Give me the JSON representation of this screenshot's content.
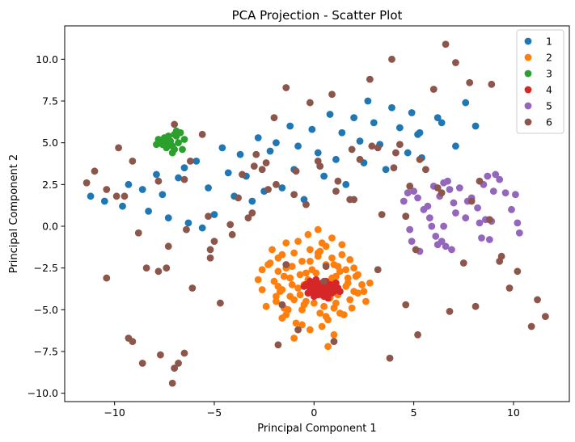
{
  "chart_data": {
    "type": "scatter",
    "title": "PCA Projection - Scatter Plot",
    "xlabel": "Principal Component 1",
    "ylabel": "Principal Component 2",
    "xlim": [
      -12.5,
      12.8
    ],
    "ylim": [
      -10.5,
      12.0
    ],
    "xticks": [
      -10,
      -5,
      0,
      5,
      10
    ],
    "yticks": [
      -10.0,
      -7.5,
      -5.0,
      -2.5,
      0.0,
      2.5,
      5.0,
      7.5,
      10.0
    ],
    "xtick_labels": [
      "−10",
      "−5",
      "0",
      "5",
      "10"
    ],
    "ytick_labels": [
      "−10.0",
      "−7.5",
      "−5.0",
      "−2.5",
      "0.0",
      "2.5",
      "5.0",
      "7.5",
      "10.0"
    ],
    "grid": false,
    "legend_position": "top-right",
    "series": [
      {
        "name": "1",
        "color": "#1f77b4",
        "x": [
          -11.2,
          -10.5,
          -9.6,
          -9.3,
          -8.6,
          -8.3,
          -7.9,
          -7.6,
          -7.3,
          -6.8,
          -6.5,
          -6.3,
          -5.9,
          -5.6,
          -5.3,
          -5.0,
          -4.6,
          -4.3,
          -4.0,
          -3.7,
          -3.4,
          -3.1,
          -2.8,
          -2.5,
          -2.2,
          -1.9,
          -1.6,
          -1.2,
          -1.0,
          -0.8,
          -0.5,
          -0.1,
          0.2,
          0.5,
          0.8,
          1.1,
          1.4,
          1.6,
          2.0,
          2.3,
          2.5,
          2.7,
          3.0,
          3.3,
          3.6,
          3.9,
          4.3,
          4.7,
          4.9,
          5.2,
          5.4,
          6.2,
          6.4,
          7.1,
          7.6,
          8.1,
          5.3
        ],
        "y": [
          1.8,
          1.5,
          1.2,
          2.5,
          2.2,
          0.9,
          3.1,
          1.9,
          0.5,
          2.9,
          3.5,
          0.2,
          3.9,
          -0.1,
          2.3,
          0.7,
          4.7,
          3.2,
          1.8,
          4.3,
          3.0,
          1.5,
          5.3,
          2.1,
          4.5,
          5.0,
          2.3,
          6.0,
          3.4,
          4.8,
          1.6,
          5.8,
          4.4,
          3.0,
          6.7,
          4.0,
          5.6,
          2.5,
          6.5,
          5.1,
          3.8,
          7.5,
          6.2,
          4.9,
          3.4,
          7.1,
          5.9,
          4.4,
          6.8,
          5.5,
          4.1,
          6.5,
          6.2,
          4.8,
          7.4,
          6.0,
          5.6
        ]
      },
      {
        "name": "2",
        "color": "#ff7f0e",
        "x": [
          -2.6,
          -2.2,
          -1.8,
          -1.4,
          -1.0,
          -0.6,
          -0.2,
          0.2,
          0.6,
          1.0,
          1.4,
          1.8,
          2.2,
          -2.0,
          -1.5,
          -1.1,
          -0.7,
          -0.3,
          0.1,
          0.5,
          0.9,
          1.3,
          1.7,
          2.1,
          -1.7,
          -1.2,
          -0.8,
          -0.4,
          0.0,
          0.4,
          0.8,
          1.2,
          1.6,
          2.0,
          -2.4,
          -1.9,
          -1.3,
          -0.5,
          0.3,
          1.1,
          1.9,
          -1.6,
          -0.9,
          0.7,
          1.5,
          -0.2,
          0.4,
          -1.0,
          1.0,
          -0.6,
          0.6,
          -1.4,
          1.4,
          -0.3,
          0.2,
          -0.8,
          0.9,
          -1.8,
          2.4,
          -2.8,
          -1.1,
          1.2,
          -0.1,
          0.0,
          0.5,
          -0.4,
          1.8,
          -2.1,
          2.6,
          -1.6,
          -1.8,
          -0.2,
          0.8,
          1.1,
          2.8,
          -1.9,
          -0.7,
          0.3,
          1.6,
          -1.2,
          0.4,
          -0.5,
          0.9,
          1.3,
          -2.3,
          -1.6,
          -1.0,
          0.1,
          0.6,
          2.2,
          -1.4,
          -0.6,
          0.2,
          1.0,
          1.7,
          2.0,
          2.5,
          -2.6,
          -1.5,
          0.7
        ],
        "y": [
          -2.6,
          -2.2,
          -1.9,
          -2.5,
          -1.6,
          -2.1,
          -1.4,
          -1.8,
          -1.2,
          -2.3,
          -1.7,
          -2.0,
          -2.9,
          -3.3,
          -3.0,
          -3.5,
          -2.9,
          -3.2,
          -2.8,
          -3.6,
          -3.1,
          -2.7,
          -3.4,
          -3.0,
          -3.9,
          -4.2,
          -3.7,
          -4.5,
          -4.0,
          -3.8,
          -4.3,
          -4.1,
          -3.6,
          -3.9,
          -4.8,
          -4.5,
          -5.0,
          -4.7,
          -5.2,
          -4.6,
          -4.9,
          -5.5,
          -5.8,
          -5.6,
          -5.3,
          -6.2,
          -6.0,
          -6.7,
          -6.5,
          -5.9,
          -5.4,
          -1.0,
          -1.1,
          -0.5,
          -0.2,
          -0.9,
          -0.7,
          -3.6,
          -3.5,
          -3.2,
          -2.4,
          -2.4,
          -2.6,
          -4.6,
          -4.8,
          -2.8,
          -4.4,
          -1.4,
          -4.5,
          -3.8,
          -2.7,
          -2.1,
          -3.3,
          -3.0,
          -3.4,
          -4.2,
          -4.1,
          -1.5,
          -2.6,
          -3.1,
          -1.0,
          -3.5,
          -1.9,
          -5.2,
          -2.3,
          -1.7,
          -4.4,
          -3.4,
          -2.3,
          -4.0,
          -5.3,
          -5.0,
          -1.6,
          -4.9,
          -3.1,
          -2.5,
          -3.9,
          -3.8,
          -4.9,
          -7.2
        ]
      },
      {
        "name": "3",
        "color": "#2ca02c",
        "x": [
          -7.9,
          -7.7,
          -7.5,
          -7.3,
          -7.1,
          -6.9,
          -6.7,
          -6.5,
          -7.6,
          -7.4,
          -7.2,
          -7.0,
          -6.8,
          -6.6,
          -7.8,
          -7.3,
          -7.1,
          -6.9,
          -7.5,
          -7.0
        ],
        "y": [
          4.9,
          5.1,
          5.3,
          5.0,
          4.8,
          5.4,
          5.6,
          5.2,
          4.9,
          4.7,
          5.1,
          5.5,
          5.0,
          4.6,
          5.2,
          5.4,
          4.4,
          5.7,
          5.0,
          4.6
        ]
      },
      {
        "name": "4",
        "color": "#d62728",
        "x": [
          -0.4,
          -0.2,
          0.0,
          0.2,
          0.4,
          0.6,
          0.8,
          1.0,
          1.2,
          -0.3,
          -0.1,
          0.1,
          0.3,
          0.5,
          0.7,
          0.9,
          1.1,
          -0.2,
          0.0,
          0.2,
          0.4,
          0.6,
          0.8,
          1.0,
          0.1,
          0.3,
          0.5,
          0.7,
          0.9,
          0.4,
          0.6,
          0.2,
          0.8,
          0.0,
          1.3,
          -0.5
        ],
        "y": [
          -3.5,
          -3.7,
          -3.4,
          -3.8,
          -3.6,
          -3.3,
          -3.9,
          -3.5,
          -3.7,
          -4.0,
          -3.9,
          -4.1,
          -3.6,
          -4.2,
          -3.8,
          -4.0,
          -3.4,
          -3.3,
          -3.8,
          -3.5,
          -4.1,
          -3.7,
          -3.5,
          -3.9,
          -3.2,
          -3.9,
          -3.7,
          -4.3,
          -3.6,
          -3.4,
          -4.0,
          -4.1,
          -3.8,
          -4.2,
          -3.9,
          -3.6
        ]
      },
      {
        "name": "5",
        "color": "#9467bd",
        "x": [
          4.5,
          4.7,
          5.0,
          5.2,
          5.5,
          5.8,
          6.0,
          6.3,
          6.5,
          6.8,
          7.0,
          7.3,
          7.6,
          7.9,
          8.2,
          8.5,
          8.7,
          9.0,
          9.3,
          9.6,
          9.9,
          10.2,
          4.6,
          4.9,
          5.3,
          5.7,
          6.1,
          6.6,
          7.1,
          7.7,
          8.3,
          8.8,
          9.1,
          10.3,
          6.4,
          6.7,
          4.8,
          8.6,
          5.9,
          6.2,
          8.4,
          6.9,
          8.9,
          10.1,
          6.5
        ],
        "y": [
          1.5,
          2.0,
          2.1,
          1.7,
          1.0,
          0.5,
          2.4,
          1.8,
          2.6,
          2.2,
          1.4,
          2.3,
          0.5,
          1.7,
          1.1,
          2.5,
          3.0,
          2.1,
          2.8,
          2.0,
          1.0,
          0.2,
          0.6,
          -0.9,
          -1.5,
          1.2,
          -0.6,
          -1.2,
          0.8,
          1.5,
          0.2,
          -0.8,
          3.1,
          -0.4,
          -0.9,
          2.7,
          -0.2,
          0.4,
          0.0,
          -1.1,
          -0.7,
          -1.4,
          0.3,
          1.9,
          0.0
        ]
      },
      {
        "name": "6",
        "color": "#8c564b",
        "x": [
          -11.4,
          -11.0,
          -10.4,
          -9.8,
          -9.5,
          -9.1,
          -8.8,
          -8.4,
          -7.8,
          -7.3,
          -7.0,
          -6.5,
          -6.1,
          -5.6,
          -5.2,
          -4.7,
          -4.2,
          -3.8,
          -3.3,
          -2.9,
          -2.4,
          -1.9,
          -1.4,
          -0.9,
          -0.2,
          0.3,
          0.9,
          1.2,
          1.9,
          2.8,
          3.2,
          3.9,
          4.3,
          4.8,
          5.3,
          6.0,
          6.6,
          7.1,
          7.8,
          8.3,
          8.8,
          9.4,
          9.8,
          10.2,
          10.9,
          11.2,
          11.6,
          -10.4,
          -9.3,
          -8.6,
          -7.7,
          -7.1,
          -6.5,
          -6.2,
          -5.3,
          -5.0,
          -4.1,
          -3.6,
          -3.1,
          -2.6,
          -2.0,
          -1.6,
          -1.0,
          -0.4,
          0.2,
          0.6,
          1.1,
          1.8,
          2.3,
          2.9,
          3.4,
          3.8,
          4.1,
          4.6,
          5.1,
          5.6,
          6.2,
          6.8,
          7.5,
          8.1,
          8.9,
          9.3,
          -9.1,
          -7.8,
          -7.0,
          -6.8,
          -9.9,
          -5.2,
          -7.4,
          -0.8,
          1.0,
          2.0,
          6.4,
          7.9,
          -1.4,
          4.6,
          5.2,
          4.0,
          -3.0,
          -2.3,
          3.2,
          -6.4,
          0.5,
          -1.8
        ],
        "y": [
          2.6,
          3.3,
          2.2,
          4.7,
          1.8,
          3.9,
          -0.4,
          -2.5,
          2.7,
          -1.2,
          6.1,
          2.8,
          -3.7,
          5.5,
          -1.9,
          -4.6,
          0.1,
          1.7,
          0.5,
          4.3,
          3.8,
          2.5,
          8.3,
          3.3,
          7.4,
          3.6,
          7.9,
          2.7,
          4.6,
          8.8,
          4.7,
          10.0,
          4.9,
          2.4,
          4.0,
          8.2,
          10.9,
          9.8,
          8.6,
          2.7,
          0.4,
          -1.8,
          -3.7,
          -2.7,
          -6.0,
          -4.4,
          -5.4,
          -3.1,
          -6.7,
          -8.2,
          -7.7,
          -9.4,
          -7.6,
          3.9,
          0.6,
          -0.9,
          -0.5,
          3.1,
          0.8,
          3.4,
          6.5,
          -4.7,
          1.9,
          1.3,
          3.9,
          -2.4,
          2.1,
          1.6,
          4.0,
          4.8,
          0.7,
          -7.9,
          4.4,
          0.6,
          -1.4,
          3.4,
          2.3,
          -5.1,
          -2.2,
          -4.8,
          8.5,
          -2.1,
          -6.9,
          -2.7,
          -8.5,
          -8.2,
          1.8,
          -1.4,
          -2.5,
          -6.2,
          -6.9,
          1.6,
          2.0,
          1.5,
          -2.3,
          -4.7,
          -6.5,
          3.5,
          3.6,
          2.2,
          -2.6,
          -0.2,
          -3.3,
          -7.1
        ]
      }
    ]
  }
}
